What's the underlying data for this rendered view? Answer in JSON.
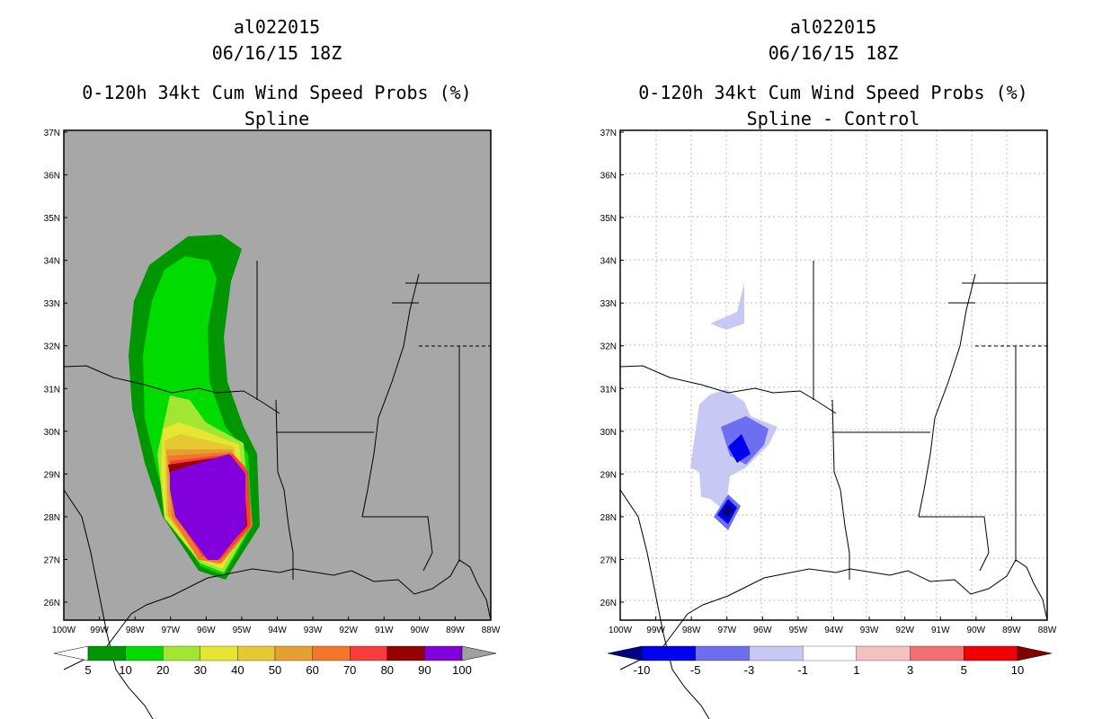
{
  "left_panel": {
    "title_storm": "al022015",
    "title_date": "06/16/15 18Z",
    "title_product": "0-120h 34kt Cum Wind Speed Probs (%)",
    "title_mode": "Spline",
    "colorbar_labels": [
      "5",
      "10",
      "20",
      "30",
      "40",
      "50",
      "60",
      "70",
      "80",
      "90",
      "100"
    ],
    "colorbar_colors": [
      "#ffffff",
      "#009600",
      "#00dc00",
      "#a0e632",
      "#e6e632",
      "#e6c832",
      "#e6a032",
      "#f07828",
      "#fa3c3c",
      "#960000",
      "#8200dc",
      "#a0a0a0"
    ]
  },
  "right_panel": {
    "title_storm": "al022015",
    "title_date": "06/16/15 18Z",
    "title_product": "0-120h 34kt Cum Wind Speed Probs (%)",
    "title_mode": "Spline - Control",
    "colorbar_labels": [
      "-10",
      "-5",
      "-3",
      "-1",
      "1",
      "3",
      "5",
      "10"
    ],
    "colorbar_colors": [
      "#000080",
      "#0000f0",
      "#6e6ef0",
      "#c8c8f5",
      "#ffffff",
      "#f5c0c0",
      "#f07070",
      "#f00000",
      "#800000"
    ]
  },
  "map_axes": {
    "lat_labels": [
      "37N",
      "36N",
      "35N",
      "34N",
      "33N",
      "32N",
      "31N",
      "30N",
      "29N",
      "28N",
      "27N",
      "26N"
    ],
    "lon_labels": [
      "100W",
      "99W",
      "98W",
      "97W",
      "96W",
      "95W",
      "94W",
      "93W",
      "92W",
      "91W",
      "90W",
      "89W",
      "88W"
    ]
  }
}
